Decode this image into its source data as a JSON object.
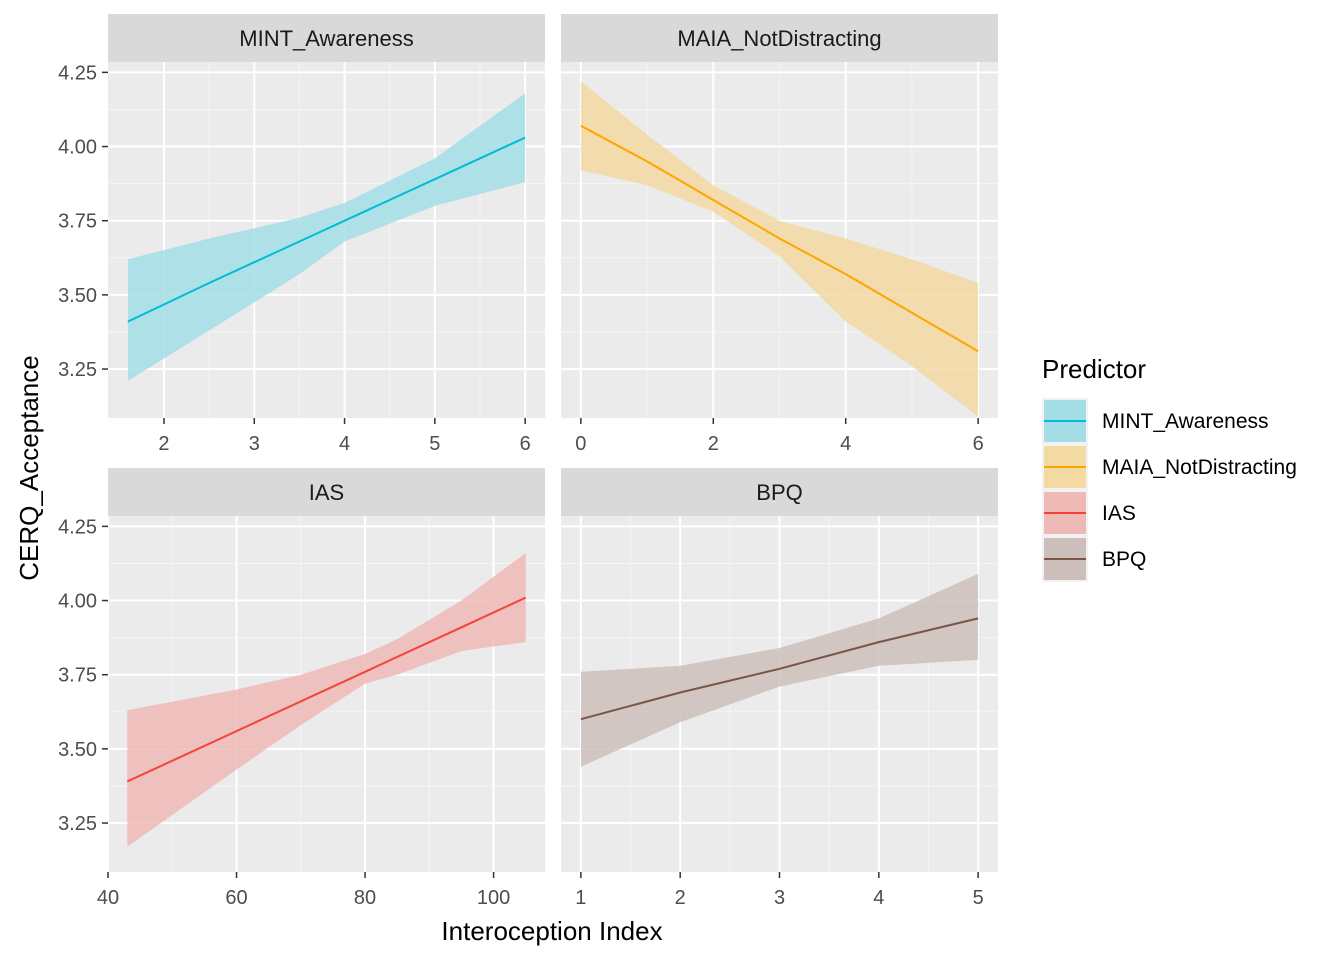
{
  "chart_data": {
    "type": "line",
    "ylabel": "CERQ_Acceptance",
    "xlabel": "Interoception Index",
    "ylim": [
      3.085,
      4.285
    ],
    "yticks": [
      3.25,
      3.5,
      3.75,
      4.0,
      4.25
    ],
    "ytick_labels": [
      "3.25",
      "3.50",
      "3.75",
      "4.00",
      "4.25"
    ],
    "grid": true,
    "band": "confidence interval ribbon",
    "legend": {
      "title": "Predictor",
      "placement": "right",
      "entries": [
        {
          "label": "MINT_Awareness",
          "color": "#00BCD4",
          "fill": "#A3DEE6"
        },
        {
          "label": "MAIA_NotDistracting",
          "color": "#FFA500",
          "fill": "#F3D9A2"
        },
        {
          "label": "IAS",
          "color": "#F44336",
          "fill": "#EFB9B6"
        },
        {
          "label": "BPQ",
          "color": "#795548",
          "fill": "#CCBFBB"
        }
      ]
    },
    "panels": [
      {
        "title": "MINT_Awareness",
        "series": "MINT_Awareness",
        "xlim": [
          1.38,
          6.22
        ],
        "xticks": [
          2,
          3,
          4,
          5,
          6
        ],
        "xtick_labels": [
          "2",
          "3",
          "4",
          "5",
          "6"
        ],
        "x": [
          1.6,
          2.5,
          3.5,
          4.0,
          5.0,
          6.0
        ],
        "y": [
          3.41,
          3.54,
          3.68,
          3.75,
          3.89,
          4.03
        ],
        "lower": [
          3.21,
          3.38,
          3.57,
          3.68,
          3.8,
          3.88
        ],
        "upper": [
          3.62,
          3.69,
          3.76,
          3.81,
          3.96,
          4.18
        ]
      },
      {
        "title": "MAIA_NotDistracting",
        "series": "MAIA_NotDistracting",
        "xlim": [
          -0.3,
          6.3
        ],
        "xticks": [
          0,
          2,
          4,
          6
        ],
        "xtick_labels": [
          "0",
          "2",
          "4",
          "6"
        ],
        "x": [
          0,
          1,
          2,
          3,
          4,
          5,
          6
        ],
        "y": [
          4.07,
          3.95,
          3.82,
          3.69,
          3.57,
          3.44,
          3.31
        ],
        "lower": [
          3.92,
          3.87,
          3.78,
          3.63,
          3.41,
          3.26,
          3.09
        ],
        "upper": [
          4.22,
          4.04,
          3.87,
          3.75,
          3.69,
          3.62,
          3.54
        ]
      },
      {
        "title": "IAS",
        "series": "IAS",
        "xlim": [
          40,
          108
        ],
        "xticks": [
          40,
          60,
          80,
          100
        ],
        "xtick_labels": [
          "40",
          "60",
          "80",
          "100"
        ],
        "x": [
          43,
          60,
          70,
          80,
          85,
          95,
          105
        ],
        "y": [
          3.39,
          3.56,
          3.66,
          3.76,
          3.81,
          3.91,
          4.01
        ],
        "lower": [
          3.17,
          3.43,
          3.58,
          3.72,
          3.75,
          3.83,
          3.86
        ],
        "upper": [
          3.63,
          3.7,
          3.75,
          3.82,
          3.87,
          4.0,
          4.16
        ]
      },
      {
        "title": "BPQ",
        "series": "BPQ",
        "xlim": [
          0.8,
          5.2
        ],
        "xticks": [
          1,
          2,
          3,
          4,
          5
        ],
        "xtick_labels": [
          "1",
          "2",
          "3",
          "4",
          "5"
        ],
        "x": [
          1,
          2,
          3,
          4,
          5
        ],
        "y": [
          3.6,
          3.69,
          3.77,
          3.86,
          3.94
        ],
        "lower": [
          3.44,
          3.59,
          3.71,
          3.78,
          3.8
        ],
        "upper": [
          3.76,
          3.78,
          3.84,
          3.94,
          4.09
        ]
      }
    ]
  }
}
